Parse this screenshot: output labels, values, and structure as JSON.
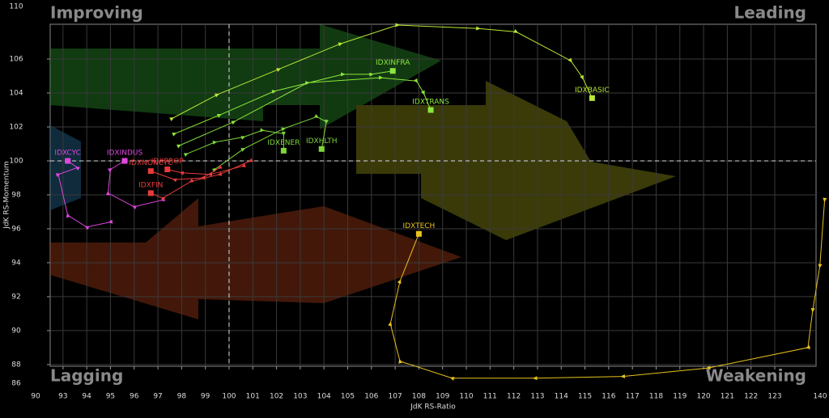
{
  "chart_data": {
    "type": "rotation",
    "x_label": "JdK RS-Ratio",
    "y_label": "JdK RS-Momentum",
    "quadrants": {
      "improving": "Improving",
      "leading": "Leading",
      "lagging": "Lagging",
      "weakening": "Weakening"
    },
    "xlim": [
      92.46,
      124.74
    ],
    "ylim": [
      87.9,
      108.05
    ],
    "xticks": [
      93,
      94,
      95,
      96,
      97,
      98,
      99,
      100,
      101,
      102,
      103,
      104,
      105,
      106,
      107,
      108,
      109,
      110,
      111,
      112,
      113,
      114,
      115,
      116,
      117,
      118,
      119,
      120,
      121,
      122,
      123
    ],
    "yticks": [
      88,
      90,
      92,
      94,
      96,
      98,
      100,
      102,
      104,
      106
    ],
    "x_break_labels": [
      90,
      140
    ],
    "y_break_labels": [
      86,
      110
    ],
    "center": [
      100,
      100
    ],
    "grid": true,
    "series": [
      {
        "name": "IDXBASIC",
        "color": "#b8e834",
        "x": [
          97.6,
          99.5,
          102.1,
          104.7,
          107.1,
          110.5,
          112.1,
          114.4,
          114.9,
          115.3
        ],
        "y": [
          102.5,
          103.9,
          105.4,
          106.9,
          108.0,
          107.8,
          107.6,
          105.9,
          104.9,
          103.7
        ]
      },
      {
        "name": "IDXINFRA",
        "color": "#8ce63c",
        "x": [
          97.7,
          99.6,
          101.9,
          104.8,
          106.0,
          106.9
        ],
        "y": [
          101.6,
          102.7,
          104.1,
          105.1,
          105.1,
          105.3
        ]
      },
      {
        "name": "IDXTRANS",
        "color": "#8ce63c",
        "x": [
          97.9,
          100.2,
          103.3,
          106.4,
          107.9,
          108.2,
          108.5
        ],
        "y": [
          100.9,
          102.3,
          104.6,
          104.9,
          104.7,
          104.0,
          103.0
        ]
      },
      {
        "name": "IDXENER",
        "color": "#7ed63a",
        "x": [
          98.2,
          99.4,
          100.6,
          101.4,
          102.3,
          102.3
        ],
        "y": [
          100.4,
          101.1,
          101.4,
          101.8,
          101.6,
          100.6
        ]
      },
      {
        "name": "IDXHLTH",
        "color": "#7ed63a",
        "x": [
          99.4,
          100.6,
          102.3,
          103.7,
          104.1,
          103.9
        ],
        "y": [
          99.5,
          100.7,
          101.9,
          102.6,
          102.3,
          100.7
        ]
      },
      {
        "name": "IDXCYC",
        "color": "#e046e0",
        "x": [
          95.0,
          94.0,
          93.2,
          92.8,
          93.6,
          93.2
        ],
        "y": [
          96.4,
          96.1,
          96.8,
          99.2,
          99.6,
          100.0
        ]
      },
      {
        "name": "IDXINDUS",
        "color": "#e046e0",
        "x": [
          97.2,
          96.0,
          94.9,
          95.0,
          95.6
        ],
        "y": [
          97.7,
          97.3,
          98.1,
          99.5,
          100.0
        ]
      },
      {
        "name": "IDXNONCYC",
        "color": "#e83a3a",
        "x": [
          99.6,
          98.9,
          97.7,
          96.7
        ],
        "y": [
          99.6,
          99.0,
          98.9,
          99.4
        ]
      },
      {
        "name": "IDXPROP",
        "color": "#e83a3a",
        "x": [
          100.6,
          99.2,
          98.0,
          97.4
        ],
        "y": [
          99.7,
          99.2,
          99.3,
          99.5
        ]
      },
      {
        "name": "IDXFIN",
        "color": "#e83a3a",
        "x": [
          100.9,
          99.6,
          98.4,
          97.2,
          96.7
        ],
        "y": [
          100.0,
          99.2,
          98.8,
          97.8,
          98.1
        ]
      },
      {
        "name": "IDXTECH",
        "color": "#e8c21e",
        "x": [
          125.1,
          124.9,
          124.6,
          124.4,
          120.2,
          116.6,
          112.9,
          109.4,
          107.2,
          106.8,
          107.2,
          108.0
        ],
        "y": [
          97.7,
          93.8,
          91.2,
          89.0,
          87.8,
          87.3,
          87.2,
          87.2,
          88.2,
          90.4,
          92.9,
          95.7
        ]
      }
    ]
  }
}
